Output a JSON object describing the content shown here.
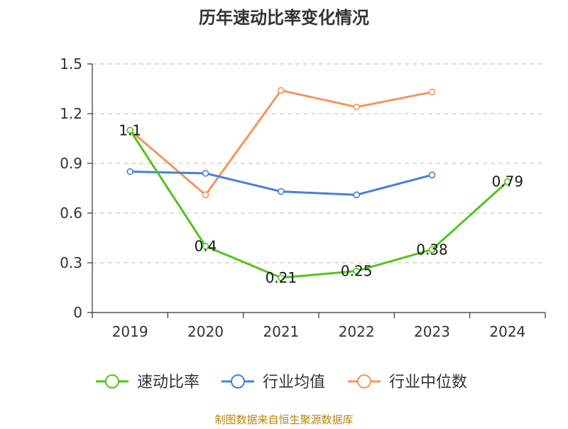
{
  "chart_data": {
    "type": "line",
    "title": "历年速动比率变化情况",
    "categories": [
      "2019",
      "2020",
      "2021",
      "2022",
      "2023",
      "2024"
    ],
    "y_ticks": [
      "0",
      "0.3",
      "0.6",
      "0.9",
      "1.2",
      "1.5"
    ],
    "ylim": [
      0,
      1.5
    ],
    "grid": "horizontal dashed",
    "legend_position": "bottom",
    "series": [
      {
        "name": "速动比率",
        "color": "#52c41a",
        "values": [
          1.1,
          0.4,
          0.21,
          0.25,
          0.38,
          0.79
        ],
        "labels": [
          "1.1",
          "0.4",
          "0.21",
          "0.25",
          "0.38",
          "0.79"
        ]
      },
      {
        "name": "行业均值",
        "color": "#4a7fd8",
        "values": [
          0.85,
          0.84,
          0.73,
          0.71,
          0.83,
          null
        ]
      },
      {
        "name": "行业中位数",
        "color": "#f5955a",
        "values": [
          1.1,
          0.71,
          1.34,
          1.24,
          1.33,
          null
        ]
      }
    ],
    "source": "制图数据来自恒生聚源数据库"
  }
}
